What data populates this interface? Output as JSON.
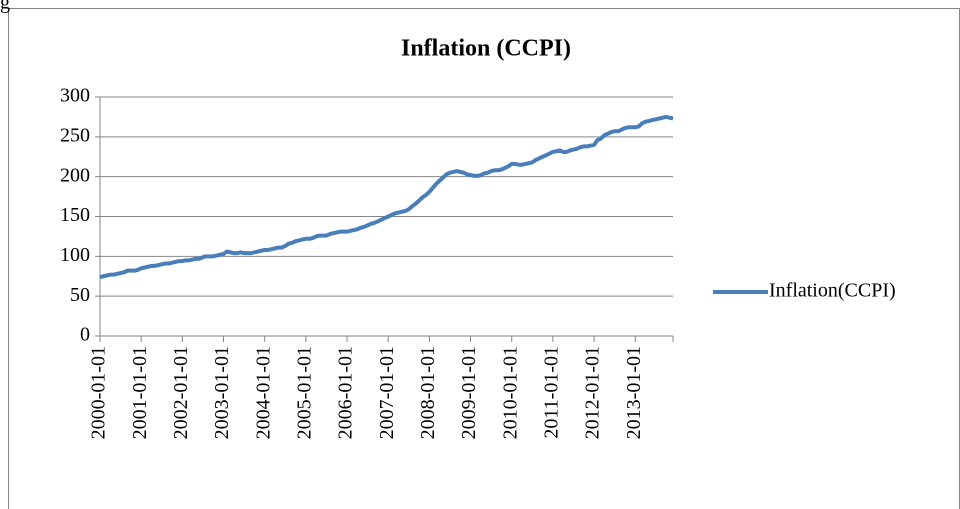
{
  "chart_data": {
    "type": "line",
    "title": "Inflation (CCPI)",
    "annotations": [
      "g"
    ],
    "categories": [
      "2000-01-01",
      null,
      null,
      null,
      null,
      null,
      null,
      null,
      null,
      null,
      null,
      null,
      "2001-01-01",
      null,
      null,
      null,
      null,
      null,
      null,
      null,
      null,
      null,
      null,
      null,
      "2002-01-01",
      null,
      null,
      null,
      null,
      null,
      null,
      null,
      null,
      null,
      null,
      null,
      "2003-01-01",
      null,
      null,
      null,
      null,
      null,
      null,
      null,
      null,
      null,
      null,
      null,
      "2004-01-01",
      null,
      null,
      null,
      null,
      null,
      null,
      null,
      null,
      null,
      null,
      null,
      "2005-01-01",
      null,
      null,
      null,
      null,
      null,
      null,
      null,
      null,
      null,
      null,
      null,
      "2006-01-01",
      null,
      null,
      null,
      null,
      null,
      null,
      null,
      null,
      null,
      null,
      null,
      "2007-01-01",
      null,
      null,
      null,
      null,
      null,
      null,
      null,
      null,
      null,
      null,
      null,
      "2008-01-01",
      null,
      null,
      null,
      null,
      null,
      null,
      null,
      null,
      null,
      null,
      null,
      "2009-01-01",
      null,
      null,
      null,
      null,
      null,
      null,
      null,
      null,
      null,
      null,
      null,
      "2010-01-01",
      null,
      null,
      null,
      null,
      null,
      null,
      null,
      null,
      null,
      null,
      null,
      "2011-01-01",
      null,
      null,
      null,
      null,
      null,
      null,
      null,
      null,
      null,
      null,
      null,
      "2012-01-01",
      null,
      null,
      null,
      null,
      null,
      null,
      null,
      null,
      null,
      null,
      null,
      "2013-01-01",
      null,
      null,
      null,
      null,
      null,
      null,
      null,
      null,
      null,
      null,
      null
    ],
    "series": [
      {
        "name": "Inflation(CCPI)",
        "color": "#4a7ebb",
        "values": [
          74,
          75,
          76,
          77,
          77,
          78,
          79,
          80,
          82,
          82,
          82,
          83,
          85,
          86,
          87,
          88,
          88,
          89,
          90,
          91,
          91,
          92,
          93,
          94,
          94,
          95,
          95,
          96,
          97,
          97,
          99,
          100,
          100,
          100,
          101,
          102,
          103,
          106,
          105,
          104,
          104,
          105,
          104,
          104,
          104,
          105,
          106,
          107,
          108,
          108,
          109,
          110,
          111,
          111,
          113,
          116,
          117,
          119,
          120,
          121,
          122,
          122,
          123,
          125,
          126,
          126,
          126,
          128,
          129,
          130,
          131,
          131,
          131,
          132,
          133,
          134,
          136,
          137,
          139,
          141,
          142,
          144,
          146,
          148,
          150,
          152,
          154,
          155,
          156,
          157,
          159,
          163,
          166,
          170,
          174,
          177,
          181,
          186,
          191,
          195,
          199,
          203,
          205,
          206,
          207,
          206,
          205,
          203,
          202,
          201,
          201,
          202,
          204,
          205,
          207,
          208,
          208,
          209,
          211,
          213,
          216,
          216,
          215,
          215,
          216,
          217,
          218,
          221,
          223,
          225,
          227,
          229,
          231,
          232,
          233,
          231,
          231,
          233,
          234,
          235,
          237,
          238,
          238,
          239,
          240,
          246,
          248,
          252,
          254,
          256,
          257,
          257,
          259,
          261,
          262,
          262,
          262,
          263,
          267,
          269,
          270,
          271,
          272,
          273,
          274,
          275,
          274,
          273
        ]
      }
    ],
    "ylim": [
      0,
      300
    ],
    "yticks": [
      0,
      50,
      100,
      150,
      200,
      250,
      300
    ],
    "grid": true,
    "legend": "right"
  }
}
